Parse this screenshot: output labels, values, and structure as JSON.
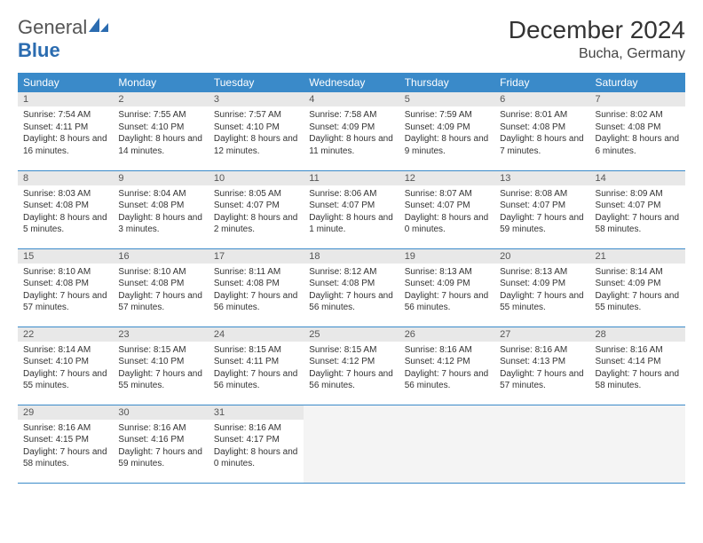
{
  "brand": {
    "name_a": "General",
    "name_b": "Blue"
  },
  "title": "December 2024",
  "location": "Bucha, Germany",
  "colors": {
    "header_bg": "#3a8ac9",
    "header_fg": "#ffffff",
    "daynum_bg": "#e8e8e8",
    "border": "#3a8ac9",
    "empty_bg": "#f4f4f4",
    "brand_blue": "#2b6cb0"
  },
  "day_headers": [
    "Sunday",
    "Monday",
    "Tuesday",
    "Wednesday",
    "Thursday",
    "Friday",
    "Saturday"
  ],
  "weeks": [
    [
      {
        "n": "1",
        "sr": "7:54 AM",
        "ss": "4:11 PM",
        "dl": "8 hours and 16 minutes."
      },
      {
        "n": "2",
        "sr": "7:55 AM",
        "ss": "4:10 PM",
        "dl": "8 hours and 14 minutes."
      },
      {
        "n": "3",
        "sr": "7:57 AM",
        "ss": "4:10 PM",
        "dl": "8 hours and 12 minutes."
      },
      {
        "n": "4",
        "sr": "7:58 AM",
        "ss": "4:09 PM",
        "dl": "8 hours and 11 minutes."
      },
      {
        "n": "5",
        "sr": "7:59 AM",
        "ss": "4:09 PM",
        "dl": "8 hours and 9 minutes."
      },
      {
        "n": "6",
        "sr": "8:01 AM",
        "ss": "4:08 PM",
        "dl": "8 hours and 7 minutes."
      },
      {
        "n": "7",
        "sr": "8:02 AM",
        "ss": "4:08 PM",
        "dl": "8 hours and 6 minutes."
      }
    ],
    [
      {
        "n": "8",
        "sr": "8:03 AM",
        "ss": "4:08 PM",
        "dl": "8 hours and 5 minutes."
      },
      {
        "n": "9",
        "sr": "8:04 AM",
        "ss": "4:08 PM",
        "dl": "8 hours and 3 minutes."
      },
      {
        "n": "10",
        "sr": "8:05 AM",
        "ss": "4:07 PM",
        "dl": "8 hours and 2 minutes."
      },
      {
        "n": "11",
        "sr": "8:06 AM",
        "ss": "4:07 PM",
        "dl": "8 hours and 1 minute."
      },
      {
        "n": "12",
        "sr": "8:07 AM",
        "ss": "4:07 PM",
        "dl": "8 hours and 0 minutes."
      },
      {
        "n": "13",
        "sr": "8:08 AM",
        "ss": "4:07 PM",
        "dl": "7 hours and 59 minutes."
      },
      {
        "n": "14",
        "sr": "8:09 AM",
        "ss": "4:07 PM",
        "dl": "7 hours and 58 minutes."
      }
    ],
    [
      {
        "n": "15",
        "sr": "8:10 AM",
        "ss": "4:08 PM",
        "dl": "7 hours and 57 minutes."
      },
      {
        "n": "16",
        "sr": "8:10 AM",
        "ss": "4:08 PM",
        "dl": "7 hours and 57 minutes."
      },
      {
        "n": "17",
        "sr": "8:11 AM",
        "ss": "4:08 PM",
        "dl": "7 hours and 56 minutes."
      },
      {
        "n": "18",
        "sr": "8:12 AM",
        "ss": "4:08 PM",
        "dl": "7 hours and 56 minutes."
      },
      {
        "n": "19",
        "sr": "8:13 AM",
        "ss": "4:09 PM",
        "dl": "7 hours and 56 minutes."
      },
      {
        "n": "20",
        "sr": "8:13 AM",
        "ss": "4:09 PM",
        "dl": "7 hours and 55 minutes."
      },
      {
        "n": "21",
        "sr": "8:14 AM",
        "ss": "4:09 PM",
        "dl": "7 hours and 55 minutes."
      }
    ],
    [
      {
        "n": "22",
        "sr": "8:14 AM",
        "ss": "4:10 PM",
        "dl": "7 hours and 55 minutes."
      },
      {
        "n": "23",
        "sr": "8:15 AM",
        "ss": "4:10 PM",
        "dl": "7 hours and 55 minutes."
      },
      {
        "n": "24",
        "sr": "8:15 AM",
        "ss": "4:11 PM",
        "dl": "7 hours and 56 minutes."
      },
      {
        "n": "25",
        "sr": "8:15 AM",
        "ss": "4:12 PM",
        "dl": "7 hours and 56 minutes."
      },
      {
        "n": "26",
        "sr": "8:16 AM",
        "ss": "4:12 PM",
        "dl": "7 hours and 56 minutes."
      },
      {
        "n": "27",
        "sr": "8:16 AM",
        "ss": "4:13 PM",
        "dl": "7 hours and 57 minutes."
      },
      {
        "n": "28",
        "sr": "8:16 AM",
        "ss": "4:14 PM",
        "dl": "7 hours and 58 minutes."
      }
    ],
    [
      {
        "n": "29",
        "sr": "8:16 AM",
        "ss": "4:15 PM",
        "dl": "7 hours and 58 minutes."
      },
      {
        "n": "30",
        "sr": "8:16 AM",
        "ss": "4:16 PM",
        "dl": "7 hours and 59 minutes."
      },
      {
        "n": "31",
        "sr": "8:16 AM",
        "ss": "4:17 PM",
        "dl": "8 hours and 0 minutes."
      },
      null,
      null,
      null,
      null
    ]
  ],
  "labels": {
    "sunrise": "Sunrise:",
    "sunset": "Sunset:",
    "daylight": "Daylight:"
  }
}
